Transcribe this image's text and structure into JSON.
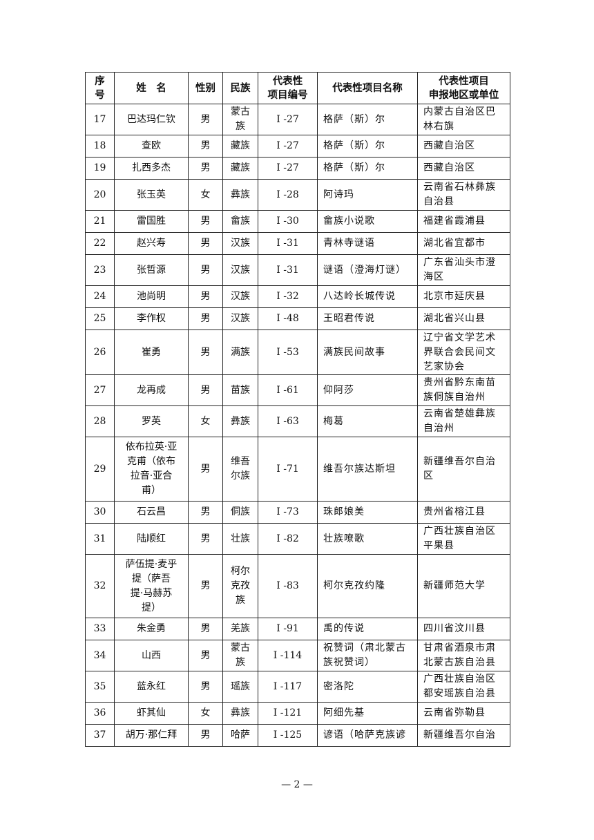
{
  "table": {
    "headers": [
      "序\n号",
      "姓　名",
      "性别",
      "民族",
      "代表性\n项目编号",
      "代表性项目名称",
      "代表性项目\n申报地区或单位"
    ],
    "rows": [
      {
        "no": "17",
        "name": "巴达玛仁钦",
        "gender": "男",
        "ethnicity": "蒙古\n族",
        "code": "I -27",
        "project": "格萨（斯）尔",
        "region": "内蒙古自治区巴\n林右旗"
      },
      {
        "no": "18",
        "name": "查欧",
        "gender": "男",
        "ethnicity": "藏族",
        "code": "I -27",
        "project": "格萨（斯）尔",
        "region": "西藏自治区"
      },
      {
        "no": "19",
        "name": "扎西多杰",
        "gender": "男",
        "ethnicity": "藏族",
        "code": "I -27",
        "project": "格萨（斯）尔",
        "region": "西藏自治区"
      },
      {
        "no": "20",
        "name": "张玉英",
        "gender": "女",
        "ethnicity": "彝族",
        "code": "I -28",
        "project": "阿诗玛",
        "region": "云南省石林彝族\n自治县"
      },
      {
        "no": "21",
        "name": "雷国胜",
        "gender": "男",
        "ethnicity": "畲族",
        "code": "I -30",
        "project": "畲族小说歌",
        "region": "福建省霞浦县"
      },
      {
        "no": "22",
        "name": "赵兴寿",
        "gender": "男",
        "ethnicity": "汉族",
        "code": "I -31",
        "project": "青林寺谜语",
        "region": "湖北省宜都市"
      },
      {
        "no": "23",
        "name": "张哲源",
        "gender": "男",
        "ethnicity": "汉族",
        "code": "I -31",
        "project": "谜语（澄海灯谜）",
        "region": "广东省汕头市澄\n海区"
      },
      {
        "no": "24",
        "name": "池尚明",
        "gender": "男",
        "ethnicity": "汉族",
        "code": "I -32",
        "project": "八达岭长城传说",
        "region": "北京市延庆县"
      },
      {
        "no": "25",
        "name": "李作权",
        "gender": "男",
        "ethnicity": "汉族",
        "code": "I -48",
        "project": "王昭君传说",
        "region": "湖北省兴山县"
      },
      {
        "no": "26",
        "name": "崔勇",
        "gender": "男",
        "ethnicity": "满族",
        "code": "I -53",
        "project": "满族民间故事",
        "region": "辽宁省文学艺术\n界联合会民间文\n艺家协会"
      },
      {
        "no": "27",
        "name": "龙再成",
        "gender": "男",
        "ethnicity": "苗族",
        "code": "I -61",
        "project": "仰阿莎",
        "region": "贵州省黔东南苗\n族侗族自治州"
      },
      {
        "no": "28",
        "name": "罗英",
        "gender": "女",
        "ethnicity": "彝族",
        "code": "I -63",
        "project": "梅葛",
        "region": "云南省楚雄彝族\n自治州"
      },
      {
        "no": "29",
        "name": "依布拉英·亚\n克甫（依布\n拉音·亚合\n甫）",
        "gender": "男",
        "ethnicity": "维吾\n尔族",
        "code": "I -71",
        "project": "维吾尔族达斯坦",
        "region": "新疆维吾尔自治\n区"
      },
      {
        "no": "30",
        "name": "石云昌",
        "gender": "男",
        "ethnicity": "侗族",
        "code": "I -73",
        "project": "珠郎娘美",
        "region": "贵州省榕江县"
      },
      {
        "no": "31",
        "name": "陆顺红",
        "gender": "男",
        "ethnicity": "壮族",
        "code": "I -82",
        "project": "壮族嘹歌",
        "region": "广西壮族自治区\n平果县"
      },
      {
        "no": "32",
        "name": "萨伍提·麦乎\n提（萨吾\n提·马赫苏\n提）",
        "gender": "男",
        "ethnicity": "柯尔\n克孜\n族",
        "code": "I -83",
        "project": "柯尔克孜约隆",
        "region": "新疆师范大学"
      },
      {
        "no": "33",
        "name": "朱金勇",
        "gender": "男",
        "ethnicity": "羌族",
        "code": "I -91",
        "project": "禹的传说",
        "region": "四川省汶川县"
      },
      {
        "no": "34",
        "name": "山西",
        "gender": "男",
        "ethnicity": "蒙古\n族",
        "code": "I -114",
        "project": "祝赞词（肃北蒙古\n族祝赞词）",
        "region": "甘肃省酒泉市肃\n北蒙古族自治县"
      },
      {
        "no": "35",
        "name": "蓝永红",
        "gender": "男",
        "ethnicity": "瑶族",
        "code": "I -117",
        "project": "密洛陀",
        "region": "广西壮族自治区\n都安瑶族自治县"
      },
      {
        "no": "36",
        "name": "虾其仙",
        "gender": "女",
        "ethnicity": "彝族",
        "code": "I -121",
        "project": "阿细先基",
        "region": "云南省弥勒县"
      },
      {
        "no": "37",
        "name": "胡万·那仁拜",
        "gender": "男",
        "ethnicity": "哈萨",
        "code": "I -125",
        "project": "谚语（哈萨克族谚",
        "region": "新疆维吾尔自治"
      }
    ]
  },
  "footer": {
    "page_number": "— 2 —"
  }
}
